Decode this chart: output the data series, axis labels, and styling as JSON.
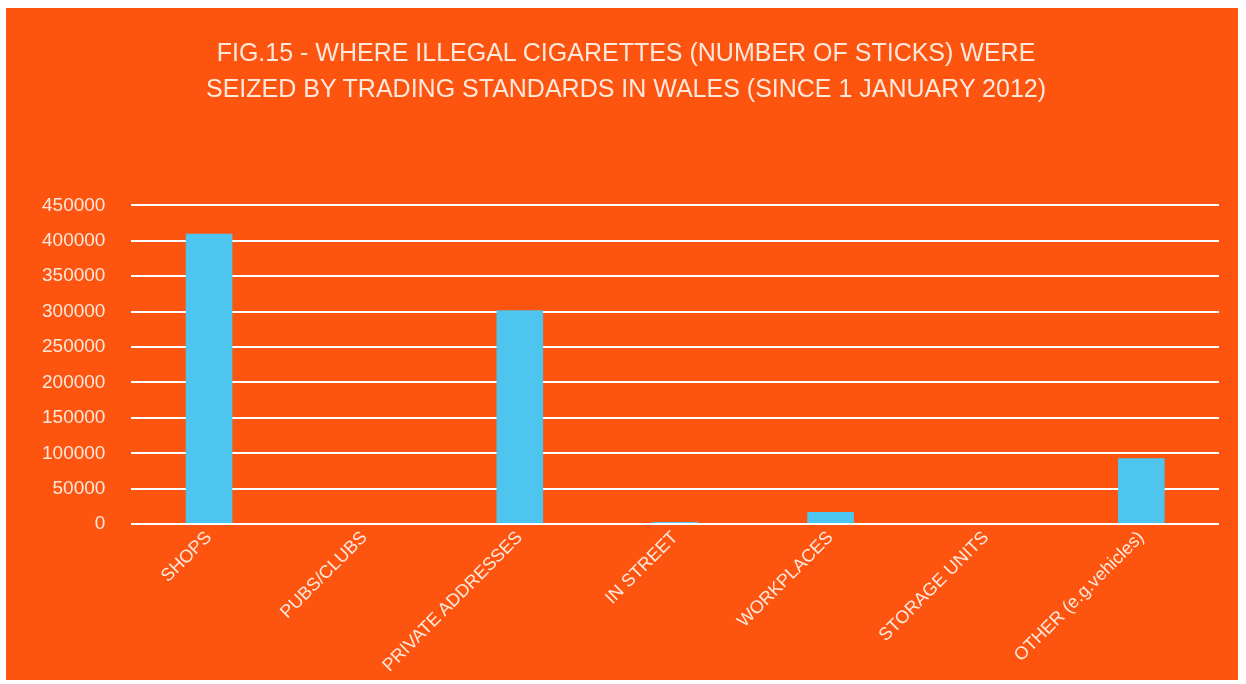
{
  "chart_data": {
    "type": "bar",
    "title": "FIG.15 - WHERE ILLEGAL CIGARETTES (NUMBER OF STICKS) WERE SEIZED BY TRADING STANDARDS IN WALES (SINCE 1 JANUARY 2012)",
    "categories": [
      "SHOPS",
      "PUBS/CLUBS",
      "PRIVATE ADDRESSES",
      "IN STREET",
      "WORKPLACES",
      "STORAGE UNITS",
      "OTHER (e.g.vehicles)"
    ],
    "values": [
      410000,
      0,
      302000,
      3000,
      17000,
      0,
      93000
    ],
    "color": "#4dc5ef",
    "ylim": [
      0,
      450000
    ],
    "yticks": [
      0,
      50000,
      100000,
      150000,
      200000,
      250000,
      300000,
      350000,
      400000,
      450000
    ],
    "grid": "y",
    "legend": false
  }
}
